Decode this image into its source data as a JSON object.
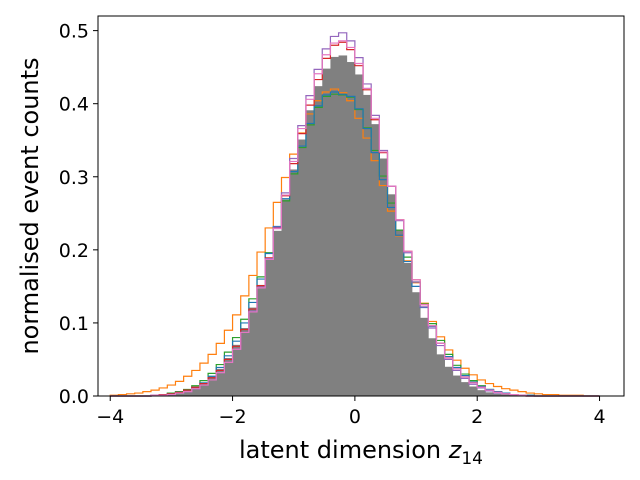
{
  "chart_data": {
    "type": "histogram-step",
    "xlabel": "latent dimension",
    "xlabel_math_symbol": "z",
    "xlabel_math_subscript": "14",
    "ylabel": "normalised event counts",
    "xlim": [
      -4.2,
      4.4
    ],
    "ylim": [
      0,
      0.52
    ],
    "xticks": [
      -4,
      -2,
      0,
      2,
      4
    ],
    "xtick_labels": [
      "−4",
      "−2",
      "0",
      "2",
      "4"
    ],
    "yticks": [
      0.0,
      0.1,
      0.2,
      0.3,
      0.4,
      0.5
    ],
    "ytick_labels": [
      "0.0",
      "0.1",
      "0.2",
      "0.3",
      "0.4",
      "0.5"
    ],
    "grid": false,
    "legend": "none",
    "bin_edges_range": [
      -4,
      4
    ],
    "bin_count": 60,
    "series": [
      {
        "style": "filled",
        "color": "#808080",
        "values": [
          0.0,
          0.0,
          0.0,
          0.0,
          0.0,
          0.001,
          0.002,
          0.004,
          0.006,
          0.009,
          0.013,
          0.018,
          0.027,
          0.037,
          0.052,
          0.07,
          0.093,
          0.121,
          0.152,
          0.188,
          0.226,
          0.269,
          0.31,
          0.351,
          0.391,
          0.424,
          0.448,
          0.464,
          0.466,
          0.457,
          0.44,
          0.412,
          0.372,
          0.325,
          0.276,
          0.227,
          0.182,
          0.142,
          0.107,
          0.079,
          0.057,
          0.04,
          0.028,
          0.019,
          0.013,
          0.008,
          0.005,
          0.003,
          0.002,
          0.001,
          0.0,
          0.0,
          0.0,
          0.0,
          0.0,
          0.0,
          0.0,
          0.0,
          0.0,
          0.0
        ]
      },
      {
        "style": "step",
        "color": "#ff7f0e",
        "values": [
          0.001,
          0.002,
          0.003,
          0.004,
          0.006,
          0.008,
          0.011,
          0.015,
          0.02,
          0.027,
          0.035,
          0.045,
          0.057,
          0.072,
          0.09,
          0.111,
          0.137,
          0.165,
          0.197,
          0.23,
          0.265,
          0.299,
          0.331,
          0.36,
          0.386,
          0.404,
          0.416,
          0.42,
          0.415,
          0.404,
          0.38,
          0.353,
          0.322,
          0.288,
          0.253,
          0.219,
          0.185,
          0.155,
          0.127,
          0.102,
          0.081,
          0.063,
          0.049,
          0.038,
          0.029,
          0.022,
          0.017,
          0.013,
          0.01,
          0.008,
          0.006,
          0.004,
          0.003,
          0.002,
          0.002,
          0.001,
          0.001,
          0.001,
          0.0,
          0.0
        ]
      },
      {
        "style": "step",
        "color": "#2ca02c",
        "values": [
          0.0,
          0.0,
          0.0,
          0.0,
          0.0,
          0.001,
          0.002,
          0.004,
          0.006,
          0.009,
          0.014,
          0.021,
          0.031,
          0.043,
          0.06,
          0.08,
          0.105,
          0.133,
          0.163,
          0.196,
          0.231,
          0.267,
          0.304,
          0.34,
          0.371,
          0.395,
          0.41,
          0.413,
          0.412,
          0.409,
          0.392,
          0.367,
          0.336,
          0.301,
          0.264,
          0.227,
          0.19,
          0.156,
          0.126,
          0.099,
          0.076,
          0.057,
          0.042,
          0.03,
          0.021,
          0.014,
          0.009,
          0.006,
          0.004,
          0.002,
          0.001,
          0.001,
          0.0,
          0.0,
          0.0,
          0.0,
          0.0,
          0.0,
          0.0,
          0.0
        ]
      },
      {
        "style": "step",
        "color": "#1f77b4",
        "values": [
          0.0,
          0.0,
          0.0,
          0.0,
          0.0,
          0.001,
          0.002,
          0.003,
          0.005,
          0.008,
          0.012,
          0.018,
          0.027,
          0.039,
          0.055,
          0.075,
          0.1,
          0.128,
          0.16,
          0.195,
          0.232,
          0.27,
          0.307,
          0.342,
          0.373,
          0.397,
          0.412,
          0.416,
          0.413,
          0.41,
          0.393,
          0.366,
          0.333,
          0.296,
          0.258,
          0.22,
          0.184,
          0.15,
          0.121,
          0.095,
          0.072,
          0.054,
          0.039,
          0.028,
          0.019,
          0.013,
          0.009,
          0.006,
          0.004,
          0.002,
          0.001,
          0.001,
          0.0,
          0.0,
          0.0,
          0.0,
          0.0,
          0.0,
          0.0,
          0.0
        ]
      },
      {
        "style": "step",
        "color": "#d62728",
        "values": [
          0.0,
          0.0,
          0.0,
          0.0,
          0.0,
          0.001,
          0.002,
          0.003,
          0.005,
          0.008,
          0.012,
          0.017,
          0.025,
          0.035,
          0.05,
          0.068,
          0.091,
          0.119,
          0.151,
          0.189,
          0.23,
          0.274,
          0.318,
          0.359,
          0.398,
          0.433,
          0.462,
          0.48,
          0.484,
          0.474,
          0.452,
          0.419,
          0.378,
          0.333,
          0.287,
          0.241,
          0.198,
          0.159,
          0.125,
          0.096,
          0.072,
          0.052,
          0.037,
          0.026,
          0.018,
          0.012,
          0.008,
          0.005,
          0.003,
          0.002,
          0.001,
          0.0,
          0.0,
          0.0,
          0.0,
          0.0,
          0.0,
          0.0,
          0.0,
          0.0
        ]
      },
      {
        "style": "step",
        "color": "#9467bd",
        "values": [
          0.0,
          0.0,
          0.0,
          0.0,
          0.0,
          0.001,
          0.001,
          0.002,
          0.004,
          0.006,
          0.01,
          0.015,
          0.022,
          0.032,
          0.046,
          0.064,
          0.087,
          0.116,
          0.149,
          0.188,
          0.231,
          0.278,
          0.325,
          0.37,
          0.411,
          0.447,
          0.475,
          0.492,
          0.497,
          0.486,
          0.463,
          0.427,
          0.384,
          0.336,
          0.287,
          0.24,
          0.196,
          0.156,
          0.122,
          0.093,
          0.069,
          0.05,
          0.035,
          0.024,
          0.016,
          0.011,
          0.007,
          0.004,
          0.003,
          0.002,
          0.001,
          0.0,
          0.0,
          0.0,
          0.0,
          0.0,
          0.0,
          0.0,
          0.0,
          0.0
        ]
      },
      {
        "style": "step",
        "color": "#e377c2",
        "values": [
          0.0,
          0.0,
          0.0,
          0.0,
          0.0,
          0.001,
          0.001,
          0.002,
          0.004,
          0.006,
          0.01,
          0.015,
          0.022,
          0.032,
          0.046,
          0.064,
          0.087,
          0.115,
          0.148,
          0.187,
          0.229,
          0.275,
          0.321,
          0.366,
          0.406,
          0.441,
          0.467,
          0.483,
          0.486,
          0.477,
          0.455,
          0.421,
          0.38,
          0.334,
          0.287,
          0.241,
          0.198,
          0.159,
          0.125,
          0.096,
          0.072,
          0.052,
          0.037,
          0.026,
          0.018,
          0.012,
          0.008,
          0.005,
          0.003,
          0.002,
          0.001,
          0.0,
          0.0,
          0.0,
          0.0,
          0.0,
          0.0,
          0.0,
          0.0,
          0.0
        ]
      }
    ]
  }
}
